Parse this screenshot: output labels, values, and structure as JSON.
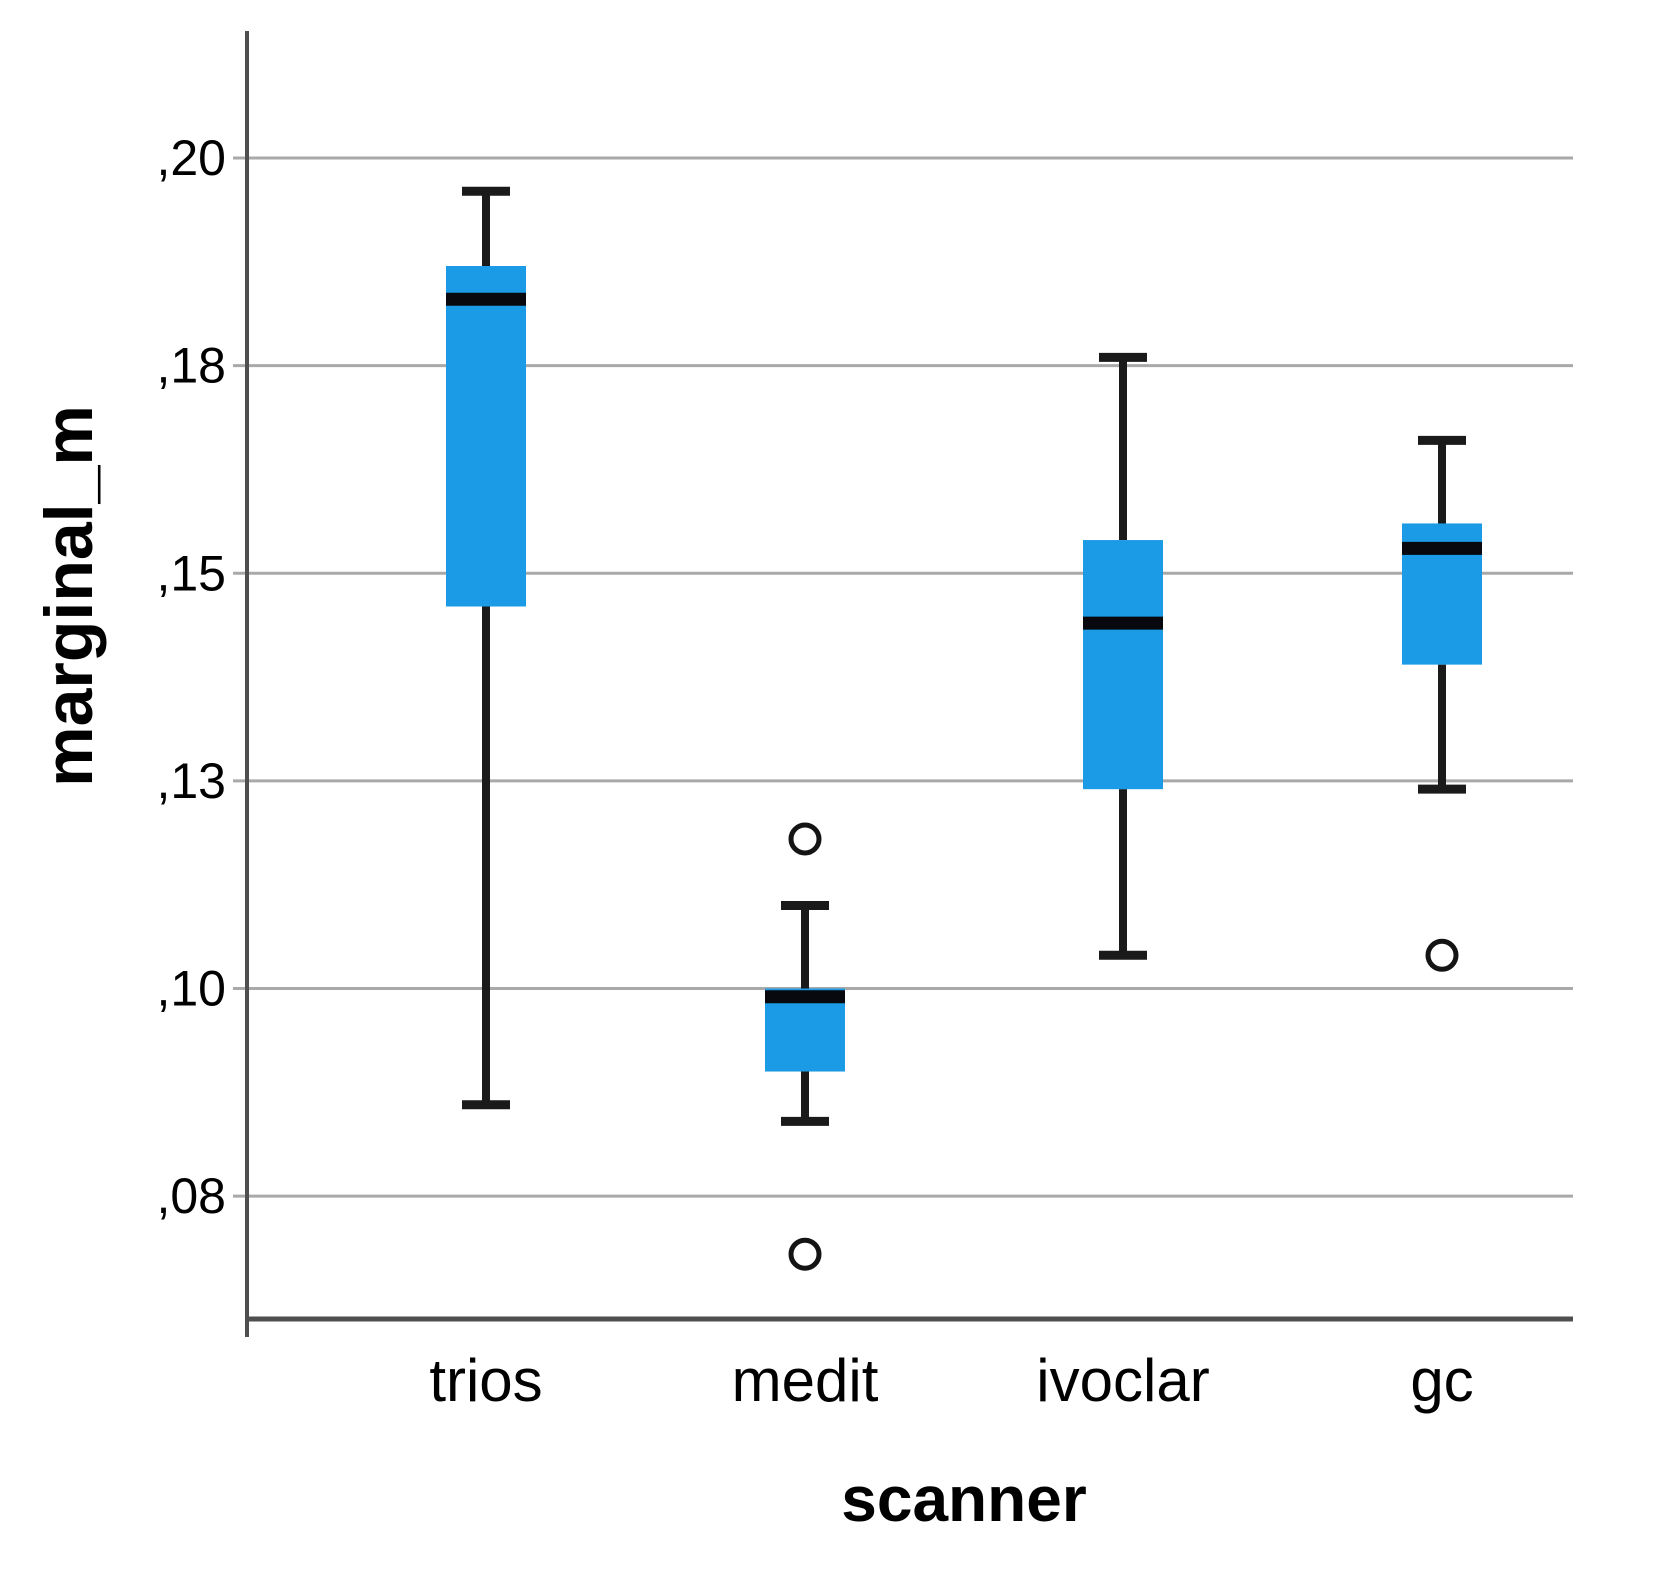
{
  "figure": {
    "background": "#ffffff"
  },
  "chart_data": {
    "type": "boxplot",
    "title": "",
    "xlabel": "scanner",
    "ylabel": "marginal_m",
    "categories": [
      "trios",
      "medit",
      "ivoclar",
      "gc"
    ],
    "y_axis": {
      "ticks": [
        {
          "value": 0.2,
          "label": ",20"
        },
        {
          "value": 0.175,
          "label": ",18"
        },
        {
          "value": 0.15,
          "label": ",15"
        },
        {
          "value": 0.125,
          "label": ",13"
        },
        {
          "value": 0.1,
          "label": ",10"
        },
        {
          "value": 0.075,
          "label": ",08"
        }
      ],
      "range": [
        0.0602,
        0.2153
      ],
      "grid": true,
      "decimal_separator": ","
    },
    "series": [
      {
        "category": "trios",
        "whisker_high": 0.196,
        "q3": 0.187,
        "median": 0.183,
        "q1": 0.146,
        "whisker_low": 0.086,
        "outliers": []
      },
      {
        "category": "medit",
        "whisker_high": 0.11,
        "q3": 0.1,
        "median": 0.099,
        "q1": 0.09,
        "whisker_low": 0.084,
        "outliers": [
          0.118,
          0.068
        ]
      },
      {
        "category": "ivoclar",
        "whisker_high": 0.176,
        "q3": 0.154,
        "median": 0.144,
        "q1": 0.124,
        "whisker_low": 0.104,
        "outliers": []
      },
      {
        "category": "gc",
        "whisker_high": 0.166,
        "q3": 0.156,
        "median": 0.153,
        "q1": 0.139,
        "whisker_low": 0.124,
        "outliers": [
          0.104
        ]
      }
    ],
    "colors": {
      "box_fill": "#1b9ae6",
      "median_line": "#07090f",
      "whisker": "#1a1a1a",
      "outlier_stroke": "#141414",
      "outlier_fill": "#ffffff",
      "grid_line": "#a9a9a9",
      "axis_line": "#4f4f4f",
      "text": "#000000",
      "background": "#ffffff"
    },
    "legend": "none"
  }
}
